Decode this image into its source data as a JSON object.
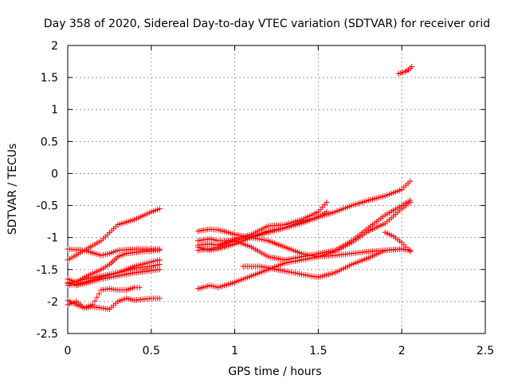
{
  "chart_data": {
    "type": "scatter",
    "title": "Day 358 of 2020, Sidereal Day-to-day VTEC variation (SDTVAR) for receiver orid",
    "xlabel": "GPS time / hours",
    "ylabel": "SDTVAR / TECUs",
    "xlim": [
      0,
      2.5
    ],
    "ylim": [
      -2.5,
      2
    ],
    "x_ticks": [
      0,
      0.5,
      1,
      1.5,
      2,
      2.5
    ],
    "x_tick_labels": [
      "0",
      "0.5",
      "1",
      "1.5",
      "2",
      "2.5"
    ],
    "y_ticks": [
      -2.5,
      -2,
      -1.5,
      -1,
      -0.5,
      0,
      0.5,
      1,
      1.5,
      2
    ],
    "y_tick_labels": [
      "-2.5",
      "-2",
      "-1.5",
      "-1",
      "-0.5",
      "0",
      "0.5",
      "1",
      "1.5",
      "2"
    ],
    "grid": true,
    "marker": "plus",
    "color": "#ff0000",
    "series": [
      {
        "points": [
          [
            0,
            -1.35
          ],
          [
            0.1,
            -1.2
          ],
          [
            0.2,
            -1.05
          ],
          [
            0.3,
            -0.8
          ],
          [
            0.4,
            -0.72
          ],
          [
            0.5,
            -0.6
          ],
          [
            0.55,
            -0.55
          ]
        ]
      },
      {
        "points": [
          [
            0,
            -1.18
          ],
          [
            0.1,
            -1.2
          ],
          [
            0.2,
            -1.28
          ],
          [
            0.25,
            -1.25
          ],
          [
            0.3,
            -1.2
          ],
          [
            0.4,
            -1.18
          ],
          [
            0.55,
            -1.18
          ]
        ]
      },
      {
        "points": [
          [
            0,
            -1.65
          ],
          [
            0.05,
            -1.7
          ],
          [
            0.1,
            -1.62
          ],
          [
            0.2,
            -1.5
          ],
          [
            0.25,
            -1.42
          ],
          [
            0.28,
            -1.35
          ],
          [
            0.3,
            -1.3
          ],
          [
            0.35,
            -1.25
          ],
          [
            0.45,
            -1.22
          ],
          [
            0.55,
            -1.2
          ]
        ]
      },
      {
        "points": [
          [
            0,
            -1.72
          ],
          [
            0.1,
            -1.65
          ],
          [
            0.2,
            -1.6
          ],
          [
            0.3,
            -1.55
          ],
          [
            0.4,
            -1.45
          ],
          [
            0.5,
            -1.38
          ],
          [
            0.55,
            -1.35
          ]
        ]
      },
      {
        "points": [
          [
            0,
            -1.75
          ],
          [
            0.1,
            -1.7
          ],
          [
            0.2,
            -1.62
          ],
          [
            0.3,
            -1.55
          ],
          [
            0.4,
            -1.48
          ],
          [
            0.5,
            -1.45
          ],
          [
            0.55,
            -1.42
          ]
        ]
      },
      {
        "points": [
          [
            0,
            -1.7
          ],
          [
            0.05,
            -1.75
          ],
          [
            0.1,
            -1.72
          ],
          [
            0.2,
            -1.65
          ],
          [
            0.3,
            -1.6
          ],
          [
            0.4,
            -1.55
          ],
          [
            0.55,
            -1.5
          ]
        ]
      },
      {
        "points": [
          [
            0,
            -2.05
          ],
          [
            0.05,
            -2.0
          ],
          [
            0.1,
            -2.1
          ],
          [
            0.15,
            -2.05
          ],
          [
            0.2,
            -1.82
          ],
          [
            0.25,
            -1.8
          ],
          [
            0.3,
            -1.82
          ],
          [
            0.35,
            -1.82
          ],
          [
            0.4,
            -1.78
          ],
          [
            0.43,
            -1.78
          ]
        ]
      },
      {
        "points": [
          [
            0,
            -1.98
          ],
          [
            0.05,
            -2.05
          ],
          [
            0.1,
            -2.1
          ],
          [
            0.15,
            -2.08
          ],
          [
            0.2,
            -2.1
          ],
          [
            0.25,
            -2.12
          ],
          [
            0.3,
            -2.0
          ],
          [
            0.35,
            -1.95
          ],
          [
            0.4,
            -1.98
          ],
          [
            0.5,
            -1.95
          ],
          [
            0.55,
            -1.95
          ]
        ]
      },
      {
        "points": [
          [
            0.78,
            -0.9
          ],
          [
            0.85,
            -0.87
          ],
          [
            0.9,
            -0.88
          ],
          [
            1.0,
            -0.95
          ],
          [
            1.1,
            -1.0
          ],
          [
            1.2,
            -1.05
          ],
          [
            1.3,
            -1.15
          ],
          [
            1.4,
            -1.25
          ],
          [
            1.5,
            -1.3
          ],
          [
            1.6,
            -1.22
          ],
          [
            1.7,
            -1.08
          ],
          [
            1.8,
            -0.9
          ],
          [
            1.9,
            -0.78
          ],
          [
            2.0,
            -0.55
          ],
          [
            2.05,
            -0.45
          ]
        ]
      },
      {
        "points": [
          [
            0.78,
            -1.05
          ],
          [
            0.85,
            -1.02
          ],
          [
            0.9,
            -1.05
          ],
          [
            1.0,
            -1.05
          ],
          [
            1.1,
            -1.15
          ],
          [
            1.2,
            -1.3
          ],
          [
            1.3,
            -1.35
          ],
          [
            1.4,
            -1.3
          ],
          [
            1.5,
            -1.25
          ],
          [
            1.6,
            -1.2
          ],
          [
            1.7,
            -1.05
          ],
          [
            1.8,
            -0.85
          ],
          [
            1.9,
            -0.65
          ],
          [
            2.0,
            -0.5
          ],
          [
            2.05,
            -0.42
          ]
        ]
      },
      {
        "points": [
          [
            0.78,
            -1.12
          ],
          [
            0.85,
            -1.1
          ],
          [
            0.9,
            -1.12
          ],
          [
            1.0,
            -1.02
          ],
          [
            1.1,
            -0.95
          ],
          [
            1.2,
            -0.82
          ],
          [
            1.3,
            -0.8
          ],
          [
            1.4,
            -0.72
          ],
          [
            1.5,
            -0.6
          ],
          [
            1.55,
            -0.45
          ]
        ]
      },
      {
        "points": [
          [
            0.78,
            -1.2
          ],
          [
            0.85,
            -1.18
          ],
          [
            0.9,
            -1.15
          ],
          [
            1.0,
            -1.05
          ],
          [
            1.1,
            -0.98
          ],
          [
            1.2,
            -0.9
          ],
          [
            1.3,
            -0.85
          ],
          [
            1.4,
            -0.78
          ],
          [
            1.5,
            -0.68
          ],
          [
            1.55,
            -0.6
          ]
        ]
      },
      {
        "points": [
          [
            0.78,
            -1.15
          ],
          [
            0.85,
            -1.2
          ],
          [
            0.9,
            -1.18
          ],
          [
            1.0,
            -1.1
          ],
          [
            1.1,
            -1.0
          ],
          [
            1.2,
            -0.92
          ],
          [
            1.3,
            -0.85
          ],
          [
            1.4,
            -0.75
          ],
          [
            1.5,
            -0.68
          ],
          [
            1.6,
            -0.6
          ],
          [
            1.7,
            -0.5
          ],
          [
            1.8,
            -0.42
          ],
          [
            1.9,
            -0.35
          ],
          [
            2.0,
            -0.25
          ],
          [
            2.05,
            -0.12
          ]
        ]
      },
      {
        "points": [
          [
            0.78,
            -1.8
          ],
          [
            0.85,
            -1.75
          ],
          [
            0.9,
            -1.78
          ],
          [
            1.0,
            -1.7
          ],
          [
            1.1,
            -1.6
          ],
          [
            1.2,
            -1.5
          ],
          [
            1.3,
            -1.4
          ],
          [
            1.4,
            -1.35
          ],
          [
            1.5,
            -1.3
          ],
          [
            1.6,
            -1.28
          ],
          [
            1.7,
            -1.25
          ],
          [
            1.8,
            -1.22
          ],
          [
            1.9,
            -1.2
          ],
          [
            2.0,
            -1.18
          ],
          [
            2.05,
            -1.2
          ]
        ]
      },
      {
        "points": [
          [
            1.05,
            -1.45
          ],
          [
            1.15,
            -1.45
          ],
          [
            1.25,
            -1.5
          ],
          [
            1.35,
            -1.55
          ],
          [
            1.45,
            -1.6
          ],
          [
            1.5,
            -1.62
          ],
          [
            1.6,
            -1.55
          ],
          [
            1.7,
            -1.42
          ],
          [
            1.8,
            -1.32
          ],
          [
            1.9,
            -1.2
          ],
          [
            2.0,
            -1.18
          ],
          [
            2.05,
            -1.2
          ]
        ]
      },
      {
        "points": [
          [
            1.9,
            -0.92
          ],
          [
            1.95,
            -0.98
          ],
          [
            2.0,
            -1.08
          ],
          [
            2.05,
            -1.22
          ]
        ]
      },
      {
        "points": [
          [
            1.98,
            1.56
          ],
          [
            2.02,
            1.59
          ],
          [
            2.04,
            1.62
          ],
          [
            2.06,
            1.67
          ]
        ]
      }
    ]
  }
}
